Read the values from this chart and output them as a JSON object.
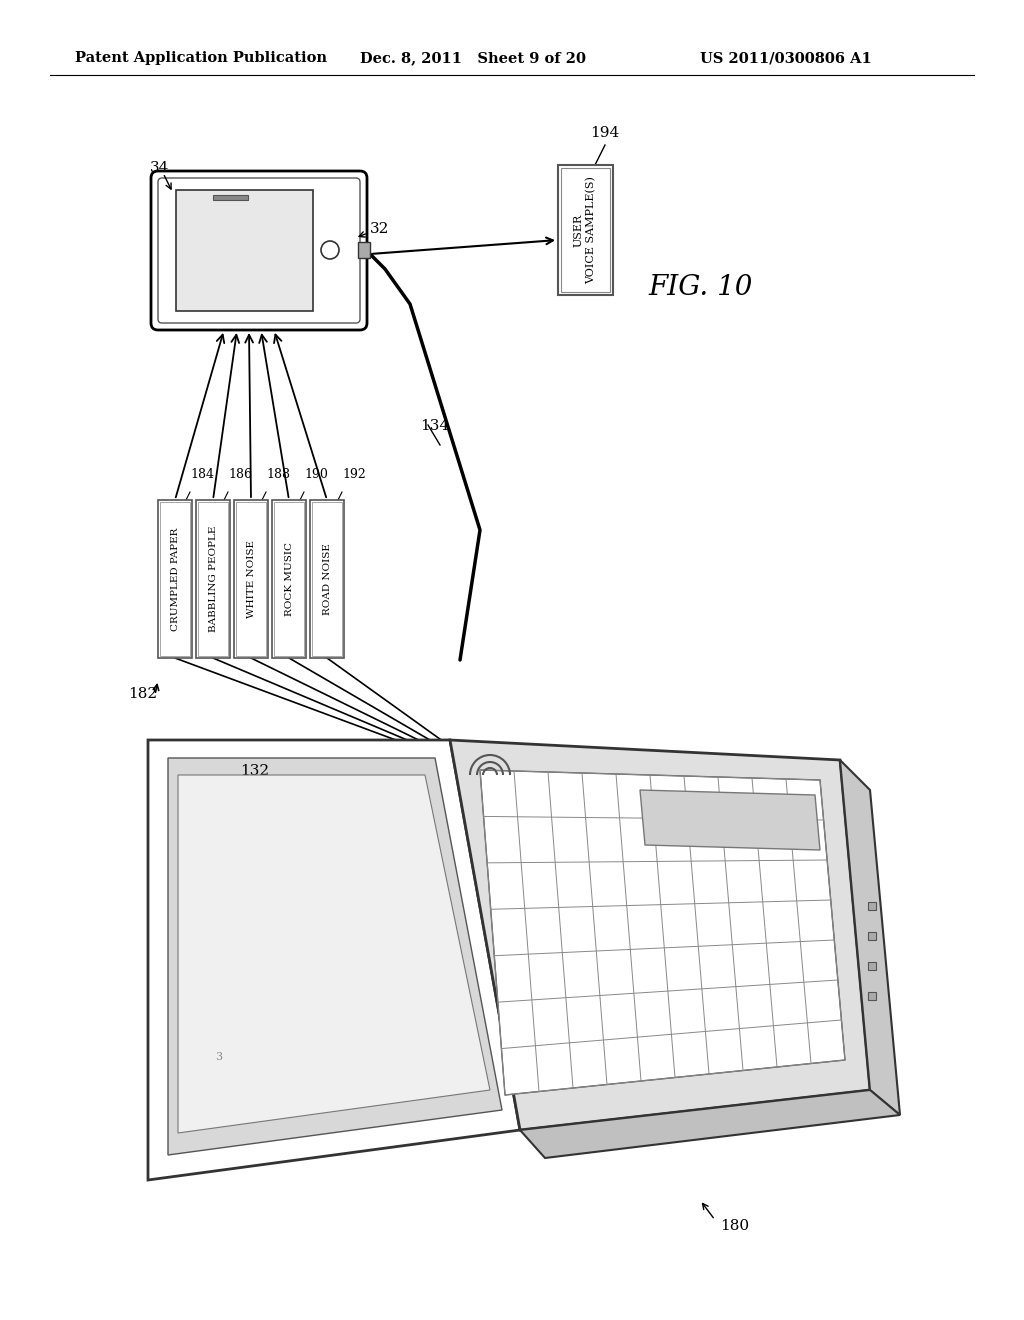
{
  "background_color": "#ffffff",
  "header_left": "Patent Application Publication",
  "header_mid": "Dec. 8, 2011   Sheet 9 of 20",
  "header_right": "US 2011/0300806 A1",
  "fig_label": "FIG. 10",
  "noise_labels": [
    "CRUMPLED PAPER",
    "BABBLING PEOPLE",
    "WHITE NOISE",
    "ROCK MUSIC",
    "ROAD NOISE"
  ],
  "noise_ref_nums": [
    "184",
    "186",
    "188",
    "190",
    "192"
  ],
  "phone_ref_body": "32",
  "phone_ref_screen": "34",
  "cable_ref": "134",
  "voice_box_ref": "194",
  "voice_box_text": "USER\nVOICE SAMPLE(S)",
  "laptop_ref": "132",
  "laptop_ref_label": "180",
  "noise_group_ref": "182",
  "line_color": "#000000",
  "text_color": "#000000"
}
